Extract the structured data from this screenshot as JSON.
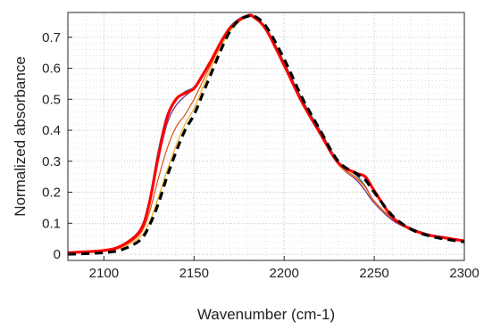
{
  "chart_data": {
    "type": "line",
    "title": "",
    "xlabel": "Wavenumber (cm-1)",
    "ylabel": "Normalized absorbance",
    "xlim": [
      2080,
      2300
    ],
    "ylim": [
      -0.02,
      0.78
    ],
    "xticks": [
      2100,
      2150,
      2200,
      2250,
      2300
    ],
    "xtick_labels": [
      "2100",
      "2150",
      "2200",
      "2250",
      "2300"
    ],
    "yticks": [
      0,
      0.1,
      0.2,
      0.3,
      0.4,
      0.5,
      0.6,
      0.7
    ],
    "ytick_labels": [
      "0",
      "0.1",
      "0.2",
      "0.3",
      "0.4",
      "0.5",
      "0.6",
      "0.7"
    ],
    "grid": "dotted major and minor",
    "legend": "none",
    "series": [
      {
        "color": "#1f77b4",
        "style": "solid",
        "width": 1.3,
        "x": [
          2080,
          2100,
          2110,
          2120,
          2125,
          2130,
          2135,
          2140,
          2145,
          2150,
          2155,
          2160,
          2165,
          2170,
          2175,
          2180,
          2183,
          2190,
          2200,
          2210,
          2220,
          2230,
          2240,
          2245,
          2250,
          2260,
          2270,
          2280,
          2290,
          2300
        ],
        "y": [
          0.005,
          0.012,
          0.03,
          0.08,
          0.17,
          0.33,
          0.45,
          0.5,
          0.525,
          0.54,
          0.585,
          0.635,
          0.69,
          0.735,
          0.76,
          0.772,
          0.77,
          0.73,
          0.62,
          0.5,
          0.4,
          0.3,
          0.255,
          0.22,
          0.17,
          0.115,
          0.085,
          0.065,
          0.055,
          0.045
        ]
      },
      {
        "color": "#7e2f8e",
        "style": "solid",
        "width": 1.3,
        "x": [
          2080,
          2100,
          2110,
          2120,
          2125,
          2130,
          2135,
          2140,
          2145,
          2150,
          2155,
          2160,
          2165,
          2170,
          2175,
          2180,
          2183,
          2190,
          2200,
          2210,
          2220,
          2230,
          2240,
          2245,
          2250,
          2260,
          2270,
          2280,
          2290,
          2300
        ],
        "y": [
          0.005,
          0.012,
          0.028,
          0.075,
          0.16,
          0.3,
          0.42,
          0.48,
          0.51,
          0.535,
          0.58,
          0.63,
          0.685,
          0.73,
          0.758,
          0.772,
          0.768,
          0.725,
          0.61,
          0.49,
          0.39,
          0.29,
          0.24,
          0.205,
          0.165,
          0.11,
          0.08,
          0.062,
          0.052,
          0.043
        ]
      },
      {
        "color": "#edb120",
        "style": "solid",
        "width": 1.2,
        "x": [
          2080,
          2100,
          2110,
          2120,
          2125,
          2130,
          2135,
          2140,
          2145,
          2150,
          2155,
          2160,
          2165,
          2170,
          2175,
          2180,
          2183,
          2190,
          2200,
          2210,
          2220,
          2230,
          2240,
          2245,
          2250,
          2260,
          2270,
          2280,
          2290,
          2300
        ],
        "y": [
          0.005,
          0.01,
          0.022,
          0.055,
          0.1,
          0.18,
          0.27,
          0.35,
          0.42,
          0.47,
          0.54,
          0.61,
          0.67,
          0.72,
          0.75,
          0.768,
          0.768,
          0.73,
          0.615,
          0.495,
          0.39,
          0.29,
          0.245,
          0.215,
          0.17,
          0.115,
          0.083,
          0.064,
          0.053,
          0.044
        ]
      },
      {
        "color": "#d95319",
        "style": "solid",
        "width": 1.2,
        "x": [
          2080,
          2100,
          2110,
          2120,
          2125,
          2130,
          2135,
          2140,
          2145,
          2150,
          2155,
          2160,
          2165,
          2170,
          2175,
          2180,
          2183,
          2190,
          2200,
          2210,
          2220,
          2230,
          2240,
          2245,
          2250,
          2260,
          2270,
          2280,
          2290,
          2300
        ],
        "y": [
          0.005,
          0.011,
          0.025,
          0.065,
          0.13,
          0.24,
          0.34,
          0.41,
          0.45,
          0.5,
          0.56,
          0.62,
          0.68,
          0.725,
          0.755,
          0.77,
          0.768,
          0.728,
          0.612,
          0.492,
          0.392,
          0.292,
          0.248,
          0.218,
          0.172,
          0.116,
          0.084,
          0.064,
          0.053,
          0.044
        ]
      },
      {
        "color": "#ff0000",
        "style": "solid",
        "width": 3.2,
        "x": [
          2080,
          2100,
          2110,
          2120,
          2125,
          2130,
          2135,
          2140,
          2145,
          2150,
          2155,
          2160,
          2165,
          2170,
          2175,
          2180,
          2183,
          2190,
          2200,
          2210,
          2220,
          2230,
          2240,
          2245,
          2250,
          2260,
          2270,
          2280,
          2290,
          2300
        ],
        "y": [
          0.005,
          0.012,
          0.028,
          0.075,
          0.16,
          0.31,
          0.44,
          0.5,
          0.52,
          0.535,
          0.58,
          0.63,
          0.685,
          0.73,
          0.755,
          0.77,
          0.766,
          0.725,
          0.61,
          0.49,
          0.39,
          0.295,
          0.262,
          0.25,
          0.205,
          0.12,
          0.082,
          0.062,
          0.052,
          0.043
        ]
      },
      {
        "color": "#000000",
        "style": "dashed",
        "width": 3.2,
        "x": [
          2080,
          2100,
          2110,
          2120,
          2125,
          2130,
          2135,
          2140,
          2145,
          2150,
          2155,
          2160,
          2165,
          2170,
          2175,
          2180,
          2183,
          2190,
          2200,
          2210,
          2220,
          2230,
          2240,
          2245,
          2250,
          2260,
          2270,
          2280,
          2290,
          2300
        ],
        "y": [
          0.0,
          0.005,
          0.015,
          0.045,
          0.09,
          0.16,
          0.25,
          0.33,
          0.4,
          0.45,
          0.52,
          0.59,
          0.66,
          0.72,
          0.755,
          0.768,
          0.77,
          0.735,
          0.63,
          0.505,
          0.4,
          0.3,
          0.26,
          0.24,
          0.2,
          0.125,
          0.082,
          0.06,
          0.048,
          0.04
        ]
      }
    ]
  }
}
